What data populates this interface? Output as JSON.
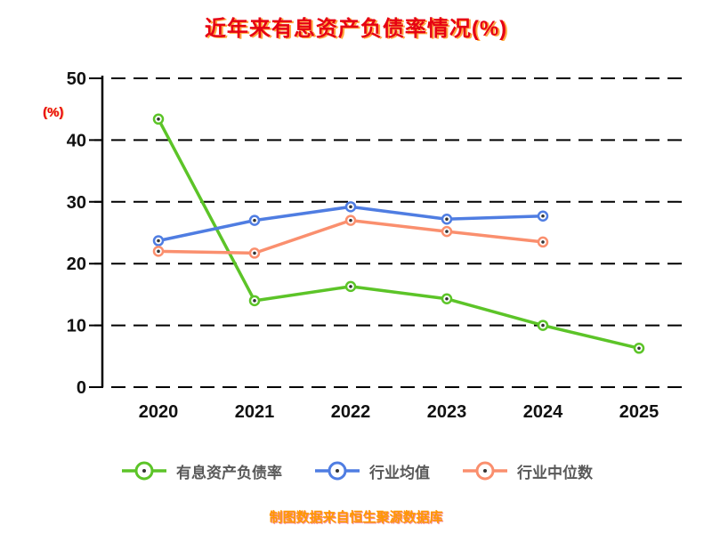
{
  "title": "近年来有息资产负债率情况(%)",
  "y_axis_unit": "(%)",
  "footer": "制图数据来自恒生聚源数据库",
  "colors": {
    "green": "#5cc428",
    "blue": "#4f7de2",
    "orange": "#fa8f6e",
    "title_red": "#e60013",
    "footer_orange": "#ff9800",
    "axis_black": "#000000",
    "marker_center": "#333333"
  },
  "chart_data": {
    "type": "line",
    "x": [
      "2020",
      "2021",
      "2022",
      "2023",
      "2024",
      "2025"
    ],
    "series": [
      {
        "name": "有息资产负债率",
        "color_key": "green",
        "values": [
          43.4,
          14.0,
          16.3,
          14.3,
          10.0,
          6.3
        ]
      },
      {
        "name": "行业均值",
        "color_key": "blue",
        "values": [
          23.7,
          27.0,
          29.2,
          27.2,
          27.7,
          null
        ]
      },
      {
        "name": "行业中位数",
        "color_key": "orange",
        "values": [
          22.0,
          21.7,
          27.0,
          25.2,
          23.5,
          null
        ]
      }
    ],
    "ylim": [
      0,
      50
    ],
    "yticks": [
      0,
      10,
      20,
      30,
      40,
      50
    ],
    "ylabel": "(%)",
    "xlabel": "",
    "grid": "dashed-horizontal",
    "legend_position": "bottom"
  }
}
